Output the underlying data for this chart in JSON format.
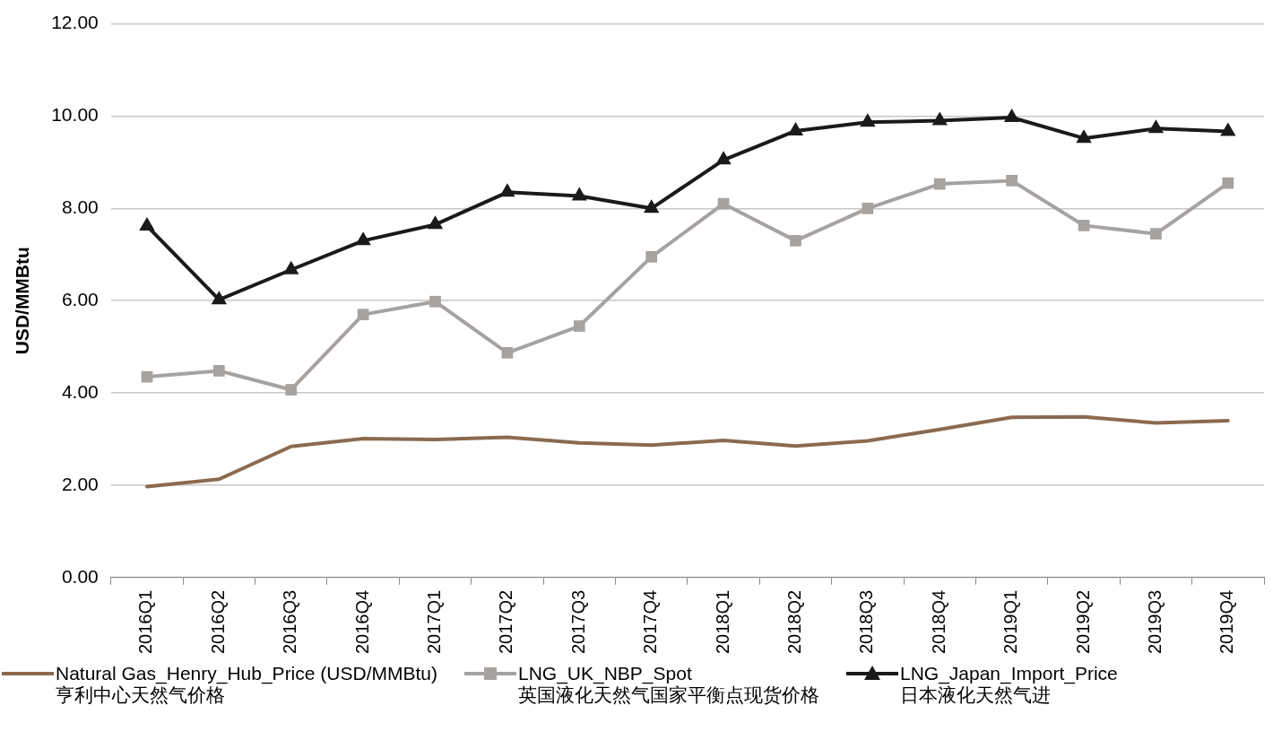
{
  "chart_data": {
    "type": "line",
    "ylabel": "USD/MMBtu",
    "categories": [
      "2016Q1",
      "2016Q2",
      "2016Q3",
      "2016Q4",
      "2017Q1",
      "2017Q2",
      "2017Q3",
      "2017Q4",
      "2018Q1",
      "2018Q2",
      "2018Q3",
      "2018Q4",
      "2019Q1",
      "2019Q2",
      "2019Q3",
      "2019Q4"
    ],
    "series": [
      {
        "name": "Natural Gas_Henry_Hub_Price (USD/MMBtu)\n亨利中心天然气价格",
        "color": "#8b6a50",
        "marker": "none",
        "values": [
          1.97,
          2.13,
          2.84,
          3.01,
          2.99,
          3.04,
          2.92,
          2.87,
          2.97,
          2.85,
          2.96,
          3.21,
          3.47,
          3.48,
          3.35,
          3.4
        ]
      },
      {
        "name": "LNG_UK_NBP_Spot\n英国液化天然气国家平衡点现货价格",
        "color": "#a6a2a0",
        "marker": "square",
        "values": [
          4.35,
          4.48,
          4.07,
          5.7,
          5.98,
          4.87,
          5.45,
          6.95,
          8.1,
          7.3,
          8.0,
          8.53,
          8.6,
          7.63,
          7.45,
          8.55
        ]
      },
      {
        "name": "LNG_Japan_Import_Price\n日本液化天然气进",
        "color": "#1a1a1a",
        "marker": "triangle",
        "values": [
          7.62,
          6.02,
          6.67,
          7.3,
          7.65,
          8.35,
          8.27,
          8.0,
          9.05,
          9.68,
          9.87,
          9.9,
          9.97,
          9.52,
          9.73,
          9.67
        ]
      }
    ],
    "ylim": [
      0,
      12
    ],
    "yticks": [
      {
        "value": 0,
        "label": "0.00"
      },
      {
        "value": 2,
        "label": "2.00"
      },
      {
        "value": 4,
        "label": "4.00"
      },
      {
        "value": 6,
        "label": "6.00"
      },
      {
        "value": 8,
        "label": "8.00"
      },
      {
        "value": 10,
        "label": "10.00"
      },
      {
        "value": 12,
        "label": "12.00"
      }
    ],
    "grid": "y",
    "legend": "bottom"
  }
}
